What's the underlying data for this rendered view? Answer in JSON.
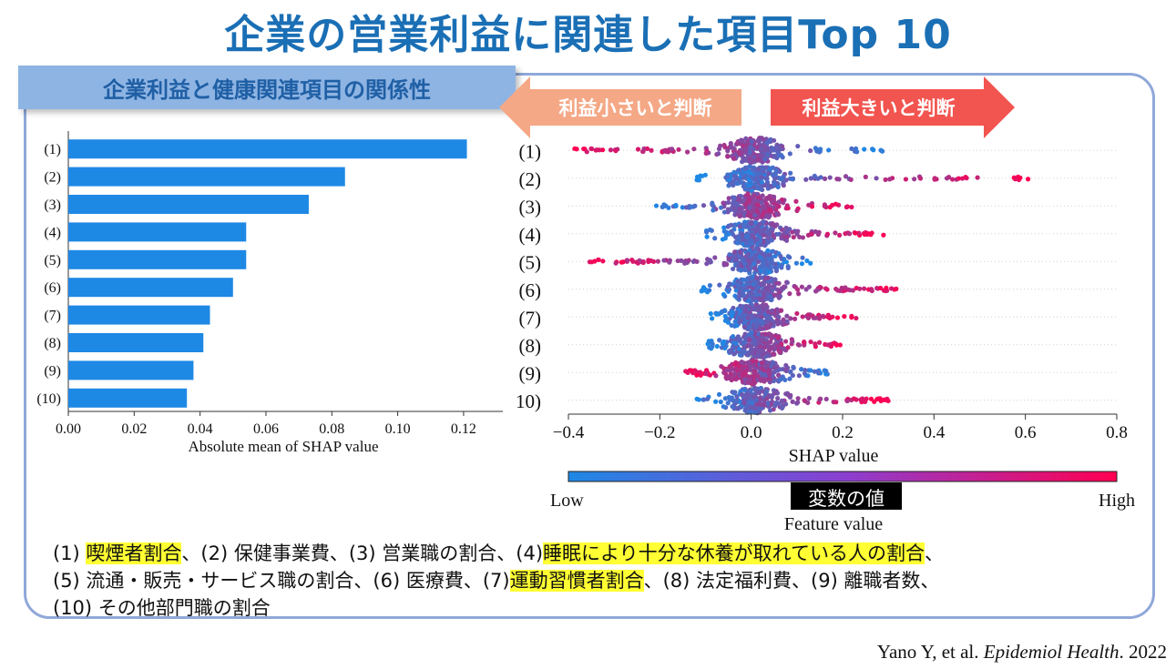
{
  "title": "企業の営業利益に関連した項目Top 10",
  "subtitle": "企業利益と健康関連項目の関係性",
  "arrows": {
    "left_label": "利益小さいと判断",
    "right_label": "利益大きいと判断"
  },
  "colors": {
    "title": "#1a6fb5",
    "bar": "#1e88e5",
    "low": "#1e88e5",
    "high": "#ff0052",
    "arrow_left": "#f4a886",
    "arrow_right": "#f2544f"
  },
  "chart_data": [
    {
      "type": "bar",
      "orientation": "horizontal",
      "categories": [
        "(1)",
        "(2)",
        "(3)",
        "(4)",
        "(5)",
        "(6)",
        "(7)",
        "(8)",
        "(9)",
        "(10)"
      ],
      "values": [
        0.121,
        0.084,
        0.073,
        0.054,
        0.054,
        0.05,
        0.043,
        0.041,
        0.038,
        0.036
      ],
      "xlabel": "Absolute mean of SHAP value",
      "xlim": [
        0,
        0.125
      ],
      "xticks": [
        "0.00",
        "0.02",
        "0.04",
        "0.06",
        "0.08",
        "0.10",
        "0.12"
      ]
    },
    {
      "type": "scatter",
      "subtype": "beeswarm",
      "categories": [
        "(1)",
        "(2)",
        "(3)",
        "(4)",
        "(5)",
        "(6)",
        "(7)",
        "(8)",
        "(9)",
        "10)"
      ],
      "ranges": [
        [
          -0.39,
          0.29
        ],
        [
          -0.12,
          0.61
        ],
        [
          -0.21,
          0.22
        ],
        [
          -0.1,
          0.29
        ],
        [
          -0.37,
          0.13
        ],
        [
          -0.11,
          0.32
        ],
        [
          -0.09,
          0.23
        ],
        [
          -0.1,
          0.2
        ],
        [
          -0.15,
          0.17
        ],
        [
          -0.12,
          0.3
        ]
      ],
      "high_side": [
        "left",
        "right",
        "right",
        "right",
        "left",
        "right",
        "right",
        "right",
        "left",
        "right"
      ],
      "xlabel": "SHAP value",
      "xlim": [
        -0.4,
        0.8
      ],
      "xticks": [
        "−0.4",
        "−0.2",
        "0.0",
        "0.2",
        "0.4",
        "0.6",
        "0.8"
      ],
      "colorbar": {
        "low": "Low",
        "high": "High",
        "label": "Feature value",
        "label_ja": "変数の値"
      }
    }
  ],
  "legend": {
    "i1_num": "(1) ",
    "i1": "喫煙者割合",
    "s1": "、(2) 保健事業費、(3) 営業職の割合、(4)",
    "i4": "睡眠により十分な休養が取れている人の割合",
    "s2": "、",
    "line2a": "(5) 流通・販売・サービス職の割合、(6) 医療費、(7)",
    "i7": "運動習慣者割合",
    "line2b": "、(8) 法定福利費、(9) 離職者数、",
    "line3": "(10) その他部門職の割合"
  },
  "citation": {
    "authors": "Yano Y, et al. ",
    "journal": "Epidemiol Health",
    "year": ". 2022"
  }
}
